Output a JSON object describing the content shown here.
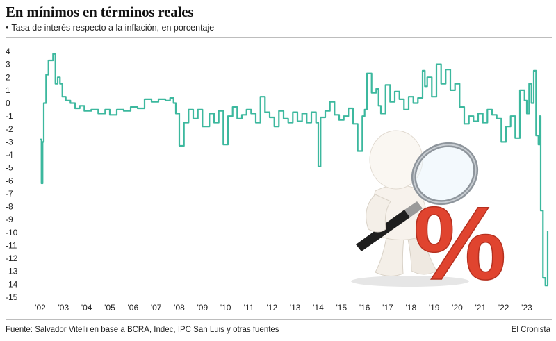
{
  "header": {
    "title": "En mínimos en términos reales",
    "subtitle_bullet": "•",
    "subtitle": "Tasa de interés respecto a la inflación, en porcentaje"
  },
  "footer": {
    "source": "Fuente: Salvador Vitelli en base a BCRA, Indec, IPC San Luis y otras fuentes",
    "brand": "El Cronista"
  },
  "colors": {
    "series": "#3cb89e",
    "zero_line": "#555555",
    "grid": "#d9d9d9",
    "rule": "#bdbdbd"
  },
  "illustration": {
    "description_icon": "person-magnifying-percent-icon",
    "symbol": "%"
  },
  "chart_data": {
    "type": "line",
    "title": "En mínimos en términos reales",
    "subtitle": "Tasa de interés respecto a la inflación, en porcentaje",
    "xlabel": "",
    "ylabel": "",
    "xlim": [
      2002.0,
      2023.9
    ],
    "ylim": [
      -15,
      4
    ],
    "y_ticks": [
      4,
      3,
      2,
      1,
      0,
      -1,
      -2,
      -3,
      -4,
      -5,
      -6,
      -7,
      -8,
      -9,
      -10,
      -11,
      -12,
      -13,
      -14,
      -15
    ],
    "x_ticks": [
      {
        "x": 2002,
        "label": "'02"
      },
      {
        "x": 2003,
        "label": "'03"
      },
      {
        "x": 2004,
        "label": "'04"
      },
      {
        "x": 2005,
        "label": "'05"
      },
      {
        "x": 2006,
        "label": "'06"
      },
      {
        "x": 2007,
        "label": "'07"
      },
      {
        "x": 2008,
        "label": "'08"
      },
      {
        "x": 2009,
        "label": "'09"
      },
      {
        "x": 2010,
        "label": "'10"
      },
      {
        "x": 2011,
        "label": "'11"
      },
      {
        "x": 2012,
        "label": "'12"
      },
      {
        "x": 2013,
        "label": "'13"
      },
      {
        "x": 2014,
        "label": "'14"
      },
      {
        "x": 2015,
        "label": "'15"
      },
      {
        "x": 2016,
        "label": "'16"
      },
      {
        "x": 2017,
        "label": "'17"
      },
      {
        "x": 2018,
        "label": "'18"
      },
      {
        "x": 2019,
        "label": "'19"
      },
      {
        "x": 2020,
        "label": "'20"
      },
      {
        "x": 2021,
        "label": "'21"
      },
      {
        "x": 2022,
        "label": "'22"
      },
      {
        "x": 2023,
        "label": "'23"
      }
    ],
    "grid": false,
    "legend": "none",
    "series": [
      {
        "x": [
          2002.0,
          2002.05,
          2002.1,
          2002.15,
          2002.25,
          2002.35,
          2002.45,
          2002.55,
          2002.65,
          2002.75,
          2002.85,
          2002.95,
          2003.1,
          2003.3,
          2003.5,
          2003.7,
          2003.9,
          2004.2,
          2004.5,
          2004.8,
          2005.0,
          2005.3,
          2005.6,
          2005.9,
          2006.2,
          2006.5,
          2006.8,
          2007.1,
          2007.4,
          2007.6,
          2007.75,
          2007.85,
          2008.0,
          2008.2,
          2008.4,
          2008.6,
          2008.8,
          2009.0,
          2009.3,
          2009.5,
          2009.7,
          2009.9,
          2010.1,
          2010.3,
          2010.5,
          2010.7,
          2010.9,
          2011.1,
          2011.3,
          2011.5,
          2011.7,
          2011.9,
          2012.1,
          2012.3,
          2012.5,
          2012.7,
          2012.9,
          2013.1,
          2013.3,
          2013.5,
          2013.7,
          2013.9,
          2014.0,
          2014.1,
          2014.3,
          2014.5,
          2014.7,
          2014.9,
          2015.1,
          2015.3,
          2015.5,
          2015.7,
          2015.9,
          2016.0,
          2016.1,
          2016.3,
          2016.5,
          2016.6,
          2016.7,
          2016.9,
          2017.1,
          2017.3,
          2017.5,
          2017.7,
          2017.9,
          2018.1,
          2018.3,
          2018.5,
          2018.6,
          2018.7,
          2018.9,
          2019.1,
          2019.3,
          2019.5,
          2019.7,
          2019.9,
          2020.1,
          2020.3,
          2020.5,
          2020.7,
          2020.9,
          2021.1,
          2021.3,
          2021.5,
          2021.7,
          2021.9,
          2022.1,
          2022.3,
          2022.5,
          2022.7,
          2022.9,
          2023.0,
          2023.1,
          2023.2,
          2023.3,
          2023.4,
          2023.5,
          2023.55,
          2023.6,
          2023.7,
          2023.8,
          2023.9
        ],
        "values": [
          -2.8,
          -6.2,
          -3.0,
          0.0,
          2.2,
          3.3,
          3.3,
          3.8,
          1.5,
          2.0,
          1.5,
          0.5,
          0.2,
          0.0,
          -0.4,
          -0.2,
          -0.6,
          -0.5,
          -0.8,
          -0.5,
          -0.9,
          -0.5,
          -0.6,
          -0.3,
          -0.4,
          0.3,
          0.1,
          0.3,
          0.2,
          0.4,
          0.0,
          -0.8,
          -3.3,
          -1.5,
          -0.5,
          -1.2,
          -0.5,
          -1.8,
          -0.8,
          -1.5,
          -0.6,
          -3.2,
          -1.0,
          -0.3,
          -1.2,
          -0.9,
          -0.5,
          -0.8,
          -1.5,
          0.5,
          -0.7,
          -1.1,
          -1.8,
          -0.6,
          -1.2,
          -1.5,
          -0.7,
          -1.4,
          -0.8,
          -1.5,
          -0.7,
          -1.5,
          -4.9,
          -1.1,
          -0.6,
          0.1,
          -0.9,
          -1.3,
          -1.0,
          -0.4,
          -1.6,
          -3.7,
          -1.0,
          -0.5,
          2.3,
          0.8,
          1.1,
          -0.2,
          -0.8,
          1.4,
          0.1,
          0.9,
          0.3,
          -0.5,
          0.5,
          0.0,
          0.4,
          2.5,
          1.3,
          2.0,
          0.5,
          3.0,
          1.5,
          2.6,
          1.0,
          1.5,
          -0.3,
          -1.6,
          -1.0,
          -1.4,
          -0.8,
          -1.5,
          -0.5,
          -0.9,
          -1.2,
          -3.0,
          -1.8,
          -1.0,
          -2.7,
          1.0,
          0.2,
          -0.8,
          1.5,
          0.0,
          2.5,
          -2.5,
          -3.2,
          -1.0,
          -8.3,
          -13.5,
          -14.1,
          -9.9
        ]
      }
    ]
  }
}
